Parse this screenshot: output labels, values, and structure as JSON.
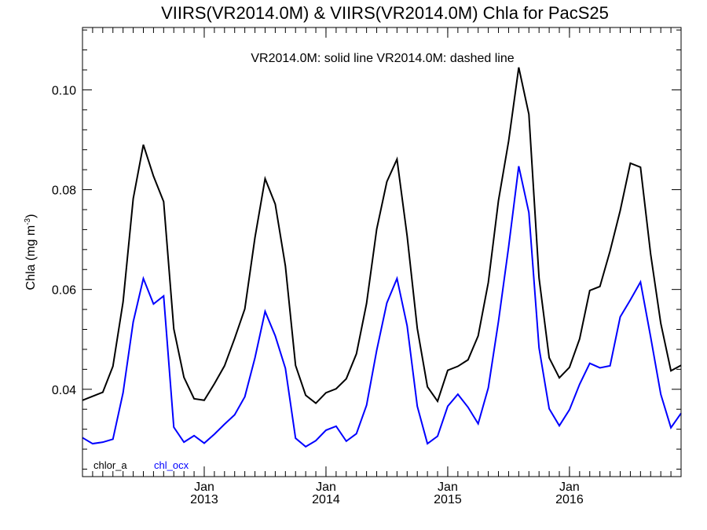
{
  "chart_data": {
    "type": "line",
    "title": "VIIRS(VR2014.0M) & VIIRS(VR2014.0M)  Chla for PacS25",
    "subtitle": "VR2014.0M: solid line   VR2014.0M: dashed line",
    "ylabel": "Chla (mg m",
    "ylabel_sup": "-3",
    "ylabel_close": ")",
    "ylim": [
      0.0225,
      0.1125
    ],
    "yticks": [
      0.04,
      0.06,
      0.08,
      0.1
    ],
    "ytick_labels": [
      "0.04",
      "0.06",
      "0.08",
      "0.10"
    ],
    "x_start": "2012-01",
    "x_end": "2016-12",
    "xticks": [
      {
        "label": "Jan",
        "year": "2013",
        "x": "2013-01"
      },
      {
        "label": "Jan",
        "year": "2014",
        "x": "2014-01"
      },
      {
        "label": "Jan",
        "year": "2015",
        "x": "2015-01"
      },
      {
        "label": "Jan",
        "year": "2016",
        "x": "2016-01"
      }
    ],
    "grid": false,
    "legend": "bottom-left",
    "series": [
      {
        "name": "chlor_a",
        "color": "#000000",
        "x": [
          "2012-01",
          "2012-02",
          "2012-03",
          "2012-04",
          "2012-05",
          "2012-06",
          "2012-07",
          "2012-08",
          "2012-09",
          "2012-10",
          "2012-11",
          "2012-12",
          "2013-01",
          "2013-02",
          "2013-03",
          "2013-04",
          "2013-05",
          "2013-06",
          "2013-07",
          "2013-08",
          "2013-09",
          "2013-10",
          "2013-11",
          "2013-12",
          "2014-01",
          "2014-02",
          "2014-03",
          "2014-04",
          "2014-05",
          "2014-06",
          "2014-07",
          "2014-08",
          "2014-09",
          "2014-10",
          "2014-11",
          "2014-12",
          "2015-01",
          "2015-02",
          "2015-03",
          "2015-04",
          "2015-05",
          "2015-06",
          "2015-07",
          "2015-08",
          "2015-09",
          "2015-10",
          "2015-11",
          "2015-12",
          "2016-01",
          "2016-02",
          "2016-03",
          "2016-04",
          "2016-05",
          "2016-06",
          "2016-07",
          "2016-08",
          "2016-09",
          "2016-10",
          "2016-11",
          "2016-12"
        ],
        "values": [
          0.0378,
          0.0386,
          0.0394,
          0.0446,
          0.0575,
          0.0782,
          0.089,
          0.0827,
          0.0776,
          0.0521,
          0.0424,
          0.0381,
          0.0378,
          0.0411,
          0.0447,
          0.0502,
          0.0561,
          0.0704,
          0.0822,
          0.0771,
          0.0647,
          0.0448,
          0.0388,
          0.0372,
          0.0393,
          0.0401,
          0.0421,
          0.0471,
          0.0572,
          0.0721,
          0.0816,
          0.0861,
          0.0707,
          0.0522,
          0.0405,
          0.0376,
          0.0438,
          0.0446,
          0.0459,
          0.0507,
          0.0614,
          0.0778,
          0.0897,
          0.1045,
          0.0951,
          0.0623,
          0.0463,
          0.0423,
          0.0444,
          0.0501,
          0.0598,
          0.0606,
          0.0677,
          0.0758,
          0.0853,
          0.0845,
          0.0671,
          0.0532,
          0.0437,
          0.0448
        ]
      },
      {
        "name": "chl_ocx",
        "color": "#0000ff",
        "x": [
          "2012-01",
          "2012-02",
          "2012-03",
          "2012-04",
          "2012-05",
          "2012-06",
          "2012-07",
          "2012-08",
          "2012-09",
          "2012-10",
          "2012-11",
          "2012-12",
          "2013-01",
          "2013-02",
          "2013-03",
          "2013-04",
          "2013-05",
          "2013-06",
          "2013-07",
          "2013-08",
          "2013-09",
          "2013-10",
          "2013-11",
          "2013-12",
          "2014-01",
          "2014-02",
          "2014-03",
          "2014-04",
          "2014-05",
          "2014-06",
          "2014-07",
          "2014-08",
          "2014-09",
          "2014-10",
          "2014-11",
          "2014-12",
          "2015-01",
          "2015-02",
          "2015-03",
          "2015-04",
          "2015-05",
          "2015-06",
          "2015-07",
          "2015-08",
          "2015-09",
          "2015-10",
          "2015-11",
          "2015-12",
          "2016-01",
          "2016-02",
          "2016-03",
          "2016-04",
          "2016-05",
          "2016-06",
          "2016-07",
          "2016-08",
          "2016-09",
          "2016-10",
          "2016-11",
          "2016-12"
        ],
        "values": [
          0.0303,
          0.0291,
          0.0294,
          0.03,
          0.0393,
          0.0535,
          0.0622,
          0.0571,
          0.0587,
          0.0324,
          0.0294,
          0.0307,
          0.0292,
          0.031,
          0.033,
          0.0349,
          0.0385,
          0.0463,
          0.0556,
          0.0507,
          0.0442,
          0.0302,
          0.0285,
          0.0297,
          0.0318,
          0.0326,
          0.0296,
          0.0311,
          0.0368,
          0.0478,
          0.0573,
          0.0622,
          0.0527,
          0.0366,
          0.0291,
          0.0306,
          0.0366,
          0.039,
          0.0364,
          0.0331,
          0.0403,
          0.0536,
          0.0685,
          0.0847,
          0.0754,
          0.0483,
          0.0361,
          0.0327,
          0.0359,
          0.041,
          0.0452,
          0.0443,
          0.0447,
          0.0545,
          0.0579,
          0.0615,
          0.0505,
          0.039,
          0.0323,
          0.0352
        ]
      }
    ]
  }
}
